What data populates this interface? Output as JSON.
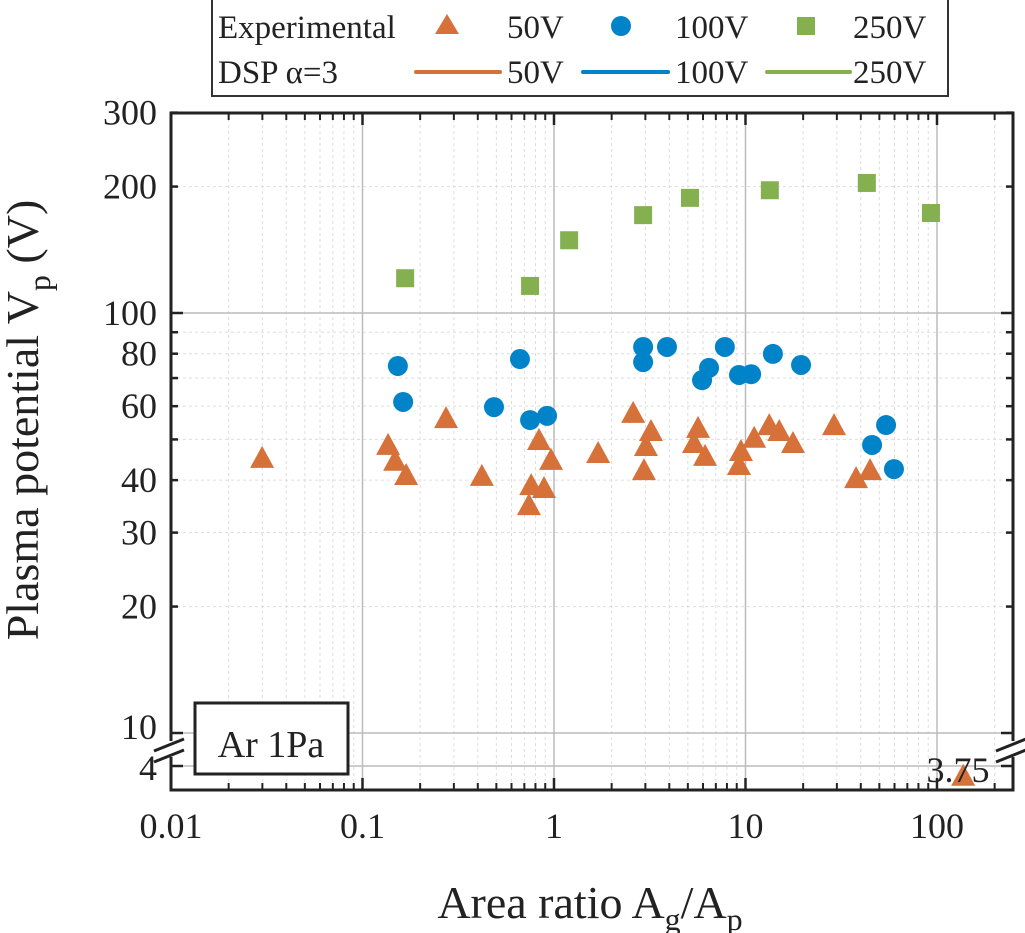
{
  "chart_data": {
    "type": "scatter",
    "xlabel": "Area ratio A",
    "xlabel_sub1": "g",
    "xlabel_mid": "/A",
    "xlabel_sub2": "p",
    "ylabel": "Plasma potential V",
    "ylabel_sub": "p",
    "ylabel_unit": " (V)",
    "x_scale": "log",
    "y_scale": "log",
    "xlim": [
      0.01,
      250
    ],
    "ylim": [
      10,
      300
    ],
    "y_break": {
      "lower_tick": 4,
      "upper_tick": 10
    },
    "grid": true,
    "x_ticks": [
      "0.01",
      "0.1",
      "1",
      "10",
      "100"
    ],
    "x_tick_values": [
      0.01,
      0.1,
      1,
      10,
      100
    ],
    "y_ticks": [
      "300",
      "200",
      "100",
      "80",
      "60",
      "40",
      "30",
      "20",
      "10",
      "4"
    ],
    "y_tick_values": [
      300,
      200,
      100,
      80,
      60,
      40,
      30,
      20,
      10,
      4
    ],
    "annotation_box": "Ar 1Pa",
    "point_label": {
      "text": "3.75",
      "x": 137,
      "y": 3.75
    },
    "legend": {
      "placement": "top",
      "row1_title": "Experimental",
      "row2_title": "DSP α=3",
      "markers": [
        "50V",
        "100V",
        "250V"
      ],
      "lines": [
        "50V",
        "100V",
        "250V"
      ]
    },
    "series": [
      {
        "name": "50V",
        "marker": "triangle",
        "color": "#D6713A",
        "x": [
          0.0299,
          0.136,
          0.148,
          0.169,
          0.273,
          0.42,
          0.74,
          0.76,
          0.835,
          0.887,
          0.965,
          1.7,
          2.59,
          2.95,
          3.21,
          3.02,
          5.65,
          5.38,
          6.15,
          9.25,
          9.47,
          11.1,
          13.3,
          15.0,
          17.7,
          29.0,
          37.8,
          44.7,
          137
        ],
        "y": [
          44.7,
          48.0,
          44.0,
          40.7,
          55.6,
          40.5,
          34.5,
          38.5,
          49.3,
          37.9,
          44.2,
          45.9,
          57.2,
          41.8,
          51.8,
          47.7,
          52.7,
          48.5,
          45.2,
          43.0,
          46.4,
          49.9,
          53.5,
          51.8,
          48.5,
          53.5,
          40.0,
          41.8,
          3.75
        ]
      },
      {
        "name": "100V",
        "marker": "circle",
        "color": "#0083C8",
        "x": [
          0.153,
          0.163,
          0.486,
          0.664,
          0.75,
          0.92,
          2.92,
          2.92,
          3.89,
          5.93,
          6.45,
          7.8,
          9.25,
          10.7,
          13.9,
          19.5,
          45.8,
          54.2,
          59.6
        ],
        "y": [
          74.8,
          61.4,
          59.7,
          77.7,
          55.6,
          56.9,
          83.0,
          76.4,
          83.0,
          69.2,
          74.0,
          83.0,
          71.2,
          71.5,
          79.9,
          75.2,
          48.5,
          54.1,
          42.5
        ]
      },
      {
        "name": "250V",
        "marker": "square",
        "color": "#84B04F",
        "x": [
          0.167,
          0.75,
          1.2,
          2.92,
          5.13,
          13.4,
          43,
          93
        ],
        "y": [
          121,
          116,
          149,
          171,
          188,
          196,
          204,
          173
        ]
      }
    ]
  }
}
